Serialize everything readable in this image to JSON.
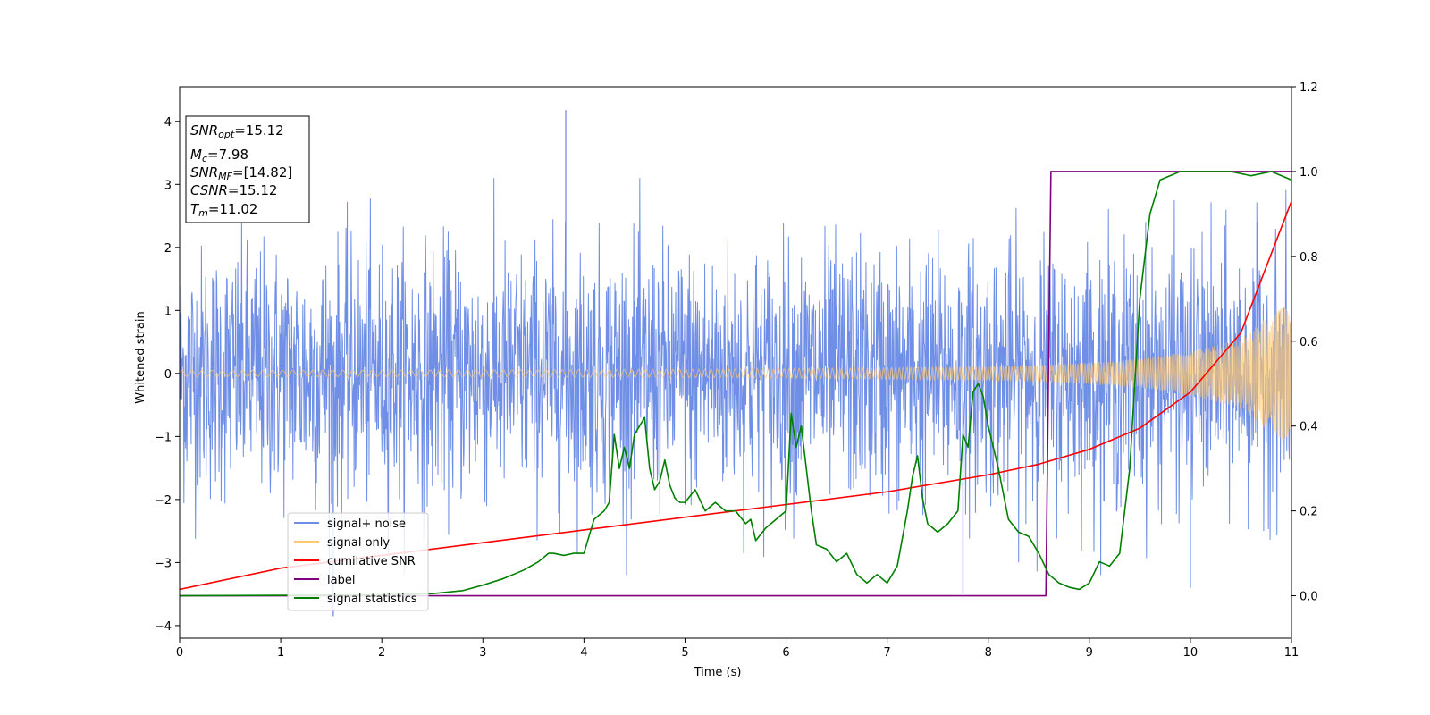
{
  "chart_data": {
    "type": "line",
    "xlabel": "Time (s)",
    "ylabel": "Whitened strain",
    "xlim": [
      0,
      11
    ],
    "ylim": [
      -4.2,
      4.55
    ],
    "y2lim": [
      -0.1,
      1.2
    ],
    "xticks": [
      "0",
      "1",
      "2",
      "3",
      "4",
      "5",
      "6",
      "7",
      "8",
      "9",
      "10",
      "11"
    ],
    "yticks": [
      "−4",
      "−3",
      "−2",
      "−1",
      "0",
      "1",
      "2",
      "3",
      "4"
    ],
    "y2ticks": [
      "0.0",
      "0.2",
      "0.4",
      "0.6",
      "0.8",
      "1.0",
      "1.2"
    ],
    "grid": false,
    "legend_position": "lower-left",
    "annotation": {
      "lines": [
        {
          "sym": "SNR",
          "sub": "opt",
          "rest": "=15.12"
        },
        {
          "sym": "M",
          "sub": "c",
          "rest": "=7.98"
        },
        {
          "sym": "SNR",
          "sub": "MF",
          "rest": "=[14.82]"
        },
        {
          "sym": "CSNR",
          "sub": "",
          "rest": "=15.12"
        },
        {
          "sym": "T",
          "sub": "m",
          "rest": "=11.02"
        }
      ]
    },
    "series": [
      {
        "name": "signal+ noise",
        "axis": "left",
        "color": "#6f8ee6",
        "description": "noisy whitened strain, amplitude roughly within -3.5 to 4.2",
        "peaks": [
          [
            3.82,
            4.18
          ],
          [
            1.52,
            -3.85
          ],
          [
            7.75,
            -3.5
          ],
          [
            10.0,
            -3.4
          ]
        ]
      },
      {
        "name": "signal only",
        "axis": "left",
        "color": "#ffc86e",
        "envelope": {
          "x": [
            0,
            1,
            2,
            3,
            4,
            5,
            6,
            7,
            8,
            8.5,
            9,
            9.5,
            10,
            10.5,
            11
          ],
          "amp": [
            0.05,
            0.05,
            0.05,
            0.055,
            0.06,
            0.065,
            0.075,
            0.09,
            0.11,
            0.13,
            0.17,
            0.23,
            0.35,
            0.55,
            1.2
          ]
        }
      },
      {
        "name": "cumilative SNR",
        "axis": "right",
        "color": "#ff0000",
        "x": [
          0,
          1,
          2,
          3,
          4,
          5,
          6,
          7,
          8,
          8.5,
          9,
          9.5,
          10,
          10.5,
          11
        ],
        "y": [
          0.015,
          0.065,
          0.095,
          0.125,
          0.155,
          0.185,
          0.215,
          0.245,
          0.285,
          0.31,
          0.345,
          0.395,
          0.48,
          0.62,
          0.93
        ]
      },
      {
        "name": "label",
        "axis": "right",
        "color": "#800080",
        "x": [
          0,
          8.57,
          8.62,
          11
        ],
        "y": [
          0,
          0,
          1,
          1
        ]
      },
      {
        "name": "signal statistics",
        "axis": "right",
        "color": "#008000",
        "x": [
          0,
          2.0,
          2.5,
          2.8,
          3.0,
          3.2,
          3.4,
          3.55,
          3.65,
          3.7,
          3.8,
          3.9,
          4.0,
          4.1,
          4.2,
          4.25,
          4.3,
          4.35,
          4.4,
          4.45,
          4.5,
          4.55,
          4.6,
          4.65,
          4.7,
          4.75,
          4.8,
          4.85,
          4.9,
          4.95,
          5.0,
          5.1,
          5.2,
          5.3,
          5.4,
          5.5,
          5.6,
          5.65,
          5.7,
          5.8,
          5.9,
          6.0,
          6.05,
          6.1,
          6.15,
          6.2,
          6.25,
          6.3,
          6.4,
          6.5,
          6.6,
          6.7,
          6.8,
          6.9,
          7.0,
          7.1,
          7.2,
          7.25,
          7.3,
          7.35,
          7.4,
          7.5,
          7.6,
          7.7,
          7.75,
          7.8,
          7.85,
          7.9,
          7.95,
          8.0,
          8.1,
          8.2,
          8.3,
          8.4,
          8.5,
          8.6,
          8.7,
          8.8,
          8.9,
          9.0,
          9.1,
          9.2,
          9.3,
          9.4,
          9.5,
          9.6,
          9.7,
          9.8,
          9.9,
          10.0,
          10.2,
          10.4,
          10.6,
          10.8,
          11.0
        ],
        "y": [
          0,
          0.002,
          0.005,
          0.012,
          0.025,
          0.04,
          0.06,
          0.08,
          0.1,
          0.1,
          0.095,
          0.1,
          0.1,
          0.18,
          0.2,
          0.22,
          0.38,
          0.3,
          0.35,
          0.3,
          0.38,
          0.4,
          0.42,
          0.3,
          0.25,
          0.27,
          0.32,
          0.26,
          0.23,
          0.22,
          0.22,
          0.25,
          0.2,
          0.22,
          0.2,
          0.2,
          0.17,
          0.18,
          0.13,
          0.16,
          0.18,
          0.2,
          0.43,
          0.35,
          0.4,
          0.3,
          0.2,
          0.12,
          0.11,
          0.08,
          0.1,
          0.05,
          0.03,
          0.05,
          0.03,
          0.07,
          0.2,
          0.28,
          0.33,
          0.23,
          0.17,
          0.15,
          0.17,
          0.2,
          0.38,
          0.35,
          0.48,
          0.5,
          0.47,
          0.4,
          0.3,
          0.18,
          0.15,
          0.14,
          0.1,
          0.05,
          0.03,
          0.02,
          0.015,
          0.03,
          0.08,
          0.07,
          0.1,
          0.3,
          0.7,
          0.9,
          0.98,
          0.99,
          1.0,
          1.0,
          1.0,
          1.0,
          0.99,
          1.0,
          0.98
        ]
      }
    ]
  }
}
